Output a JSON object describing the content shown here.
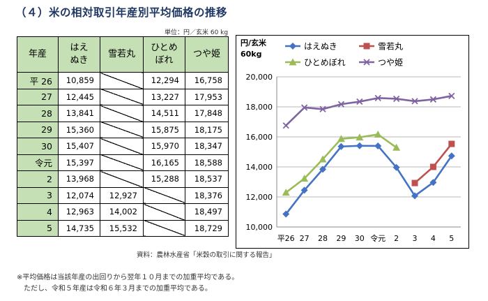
{
  "title": "（４）米の相対取引年産別平均価格の推移",
  "unit_note": "単位：円／玄米 60 kg",
  "table": {
    "headers": [
      "年産",
      "はえ\nぬき",
      "雪若丸",
      "ひとめ\nぼれ",
      "つや姫"
    ],
    "rows": [
      {
        "year": "平 26",
        "haenuki": "10,859",
        "yukiwakamaru": "",
        "hitomebore": "12,294",
        "tsuyahime": "16,758"
      },
      {
        "year": "27",
        "haenuki": "12,445",
        "yukiwakamaru": "",
        "hitomebore": "13,227",
        "tsuyahime": "17,953"
      },
      {
        "year": "28",
        "haenuki": "13,841",
        "yukiwakamaru": "",
        "hitomebore": "14,511",
        "tsuyahime": "17,848"
      },
      {
        "year": "29",
        "haenuki": "15,360",
        "yukiwakamaru": "",
        "hitomebore": "15,875",
        "tsuyahime": "18,175"
      },
      {
        "year": "30",
        "haenuki": "15,407",
        "yukiwakamaru": "",
        "hitomebore": "15,970",
        "tsuyahime": "18,347"
      },
      {
        "year": "令元",
        "haenuki": "15,397",
        "yukiwakamaru": "",
        "hitomebore": "16,165",
        "tsuyahime": "18,588"
      },
      {
        "year": "2",
        "haenuki": "13,968",
        "yukiwakamaru": "",
        "hitomebore": "15,288",
        "tsuyahime": "18,537"
      },
      {
        "year": "3",
        "haenuki": "12,074",
        "yukiwakamaru": "12,927",
        "hitomebore": "",
        "tsuyahime": "18,376"
      },
      {
        "year": "4",
        "haenuki": "12,963",
        "yukiwakamaru": "14,002",
        "hitomebore": "",
        "tsuyahime": "18,497"
      },
      {
        "year": "5",
        "haenuki": "14,735",
        "yukiwakamaru": "15,532",
        "hitomebore": "",
        "tsuyahime": "18,729"
      }
    ]
  },
  "source": "資料：農林水産省「米穀の取引に関する報告」",
  "footnotes": [
    "※平均価格は当該年産の出回りから翌年１０月までの加重平均である。",
    "ただし、令和５年産は令和６年３月までの加重平均である。"
  ],
  "chart_data": {
    "type": "line",
    "ylabel": "円/玄米\n60kg",
    "ylim": [
      10000,
      20000
    ],
    "yticks": [
      10000,
      12000,
      14000,
      16000,
      18000,
      20000
    ],
    "ytick_labels": [
      "10,000",
      "12,000",
      "14,000",
      "16,000",
      "18,000",
      "20,000"
    ],
    "categories": [
      "平26",
      "27",
      "28",
      "29",
      "30",
      "令元",
      "2",
      "3",
      "4",
      "5"
    ],
    "grid": "horizontal",
    "legend": "top",
    "series": [
      {
        "name": "はえぬき",
        "color": "#4472c4",
        "marker": "diamond",
        "values": [
          10859,
          12445,
          13841,
          15360,
          15407,
          15397,
          13968,
          12074,
          12963,
          14735
        ]
      },
      {
        "name": "雪若丸",
        "color": "#c0504d",
        "marker": "square",
        "values": [
          null,
          null,
          null,
          null,
          null,
          null,
          null,
          12927,
          14002,
          15532
        ]
      },
      {
        "name": "ひとめぼれ",
        "color": "#9bbb59",
        "marker": "triangle",
        "values": [
          12294,
          13227,
          14511,
          15875,
          15970,
          16165,
          15288,
          null,
          null,
          null
        ]
      },
      {
        "name": "つや姫",
        "color": "#8064a2",
        "marker": "x",
        "values": [
          16758,
          17953,
          17848,
          18175,
          18347,
          18588,
          18537,
          18376,
          18497,
          18729
        ]
      }
    ]
  }
}
